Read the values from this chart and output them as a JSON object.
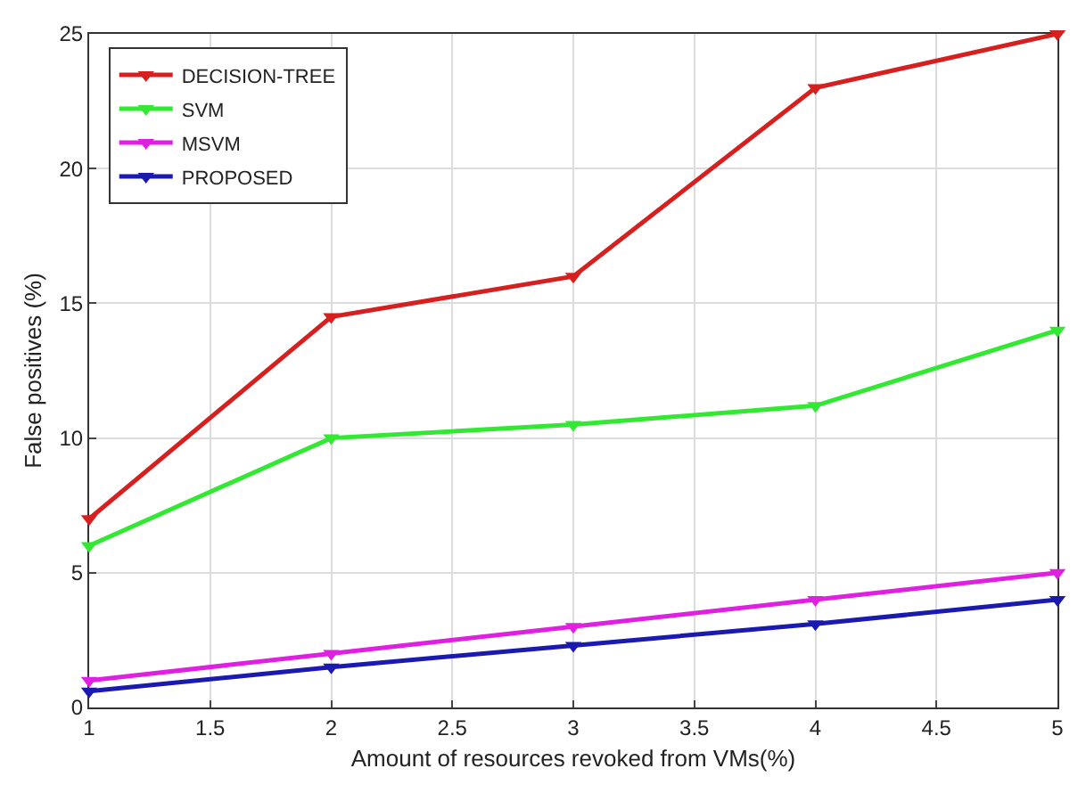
{
  "chart_data": {
    "type": "line",
    "xlabel": "Amount of resources revoked from VMs(%)",
    "ylabel": "False positives (%)",
    "x": [
      1,
      2,
      3,
      4,
      5
    ],
    "series": [
      {
        "name": "DECISION-TREE",
        "color": "#d62020",
        "values": [
          7,
          14.5,
          16,
          23,
          25
        ]
      },
      {
        "name": "SVM",
        "color": "#33e833",
        "values": [
          6,
          10,
          10.5,
          11.2,
          14
        ]
      },
      {
        "name": "MSVM",
        "color": "#e020e0",
        "values": [
          1,
          2,
          3,
          4,
          5
        ]
      },
      {
        "name": "PROPOSED",
        "color": "#1a1ab0",
        "values": [
          0.6,
          1.5,
          2.3,
          3.1,
          4
        ]
      }
    ],
    "xlim": [
      1,
      5
    ],
    "xticks": [
      1,
      1.5,
      2,
      2.5,
      3,
      3.5,
      4,
      4.5,
      5
    ],
    "ylim": [
      0,
      25
    ],
    "yticks": [
      0,
      5,
      10,
      15,
      20,
      25
    ],
    "grid": true,
    "legend": "top left",
    "marker": "triangle",
    "line_style": "solid"
  }
}
